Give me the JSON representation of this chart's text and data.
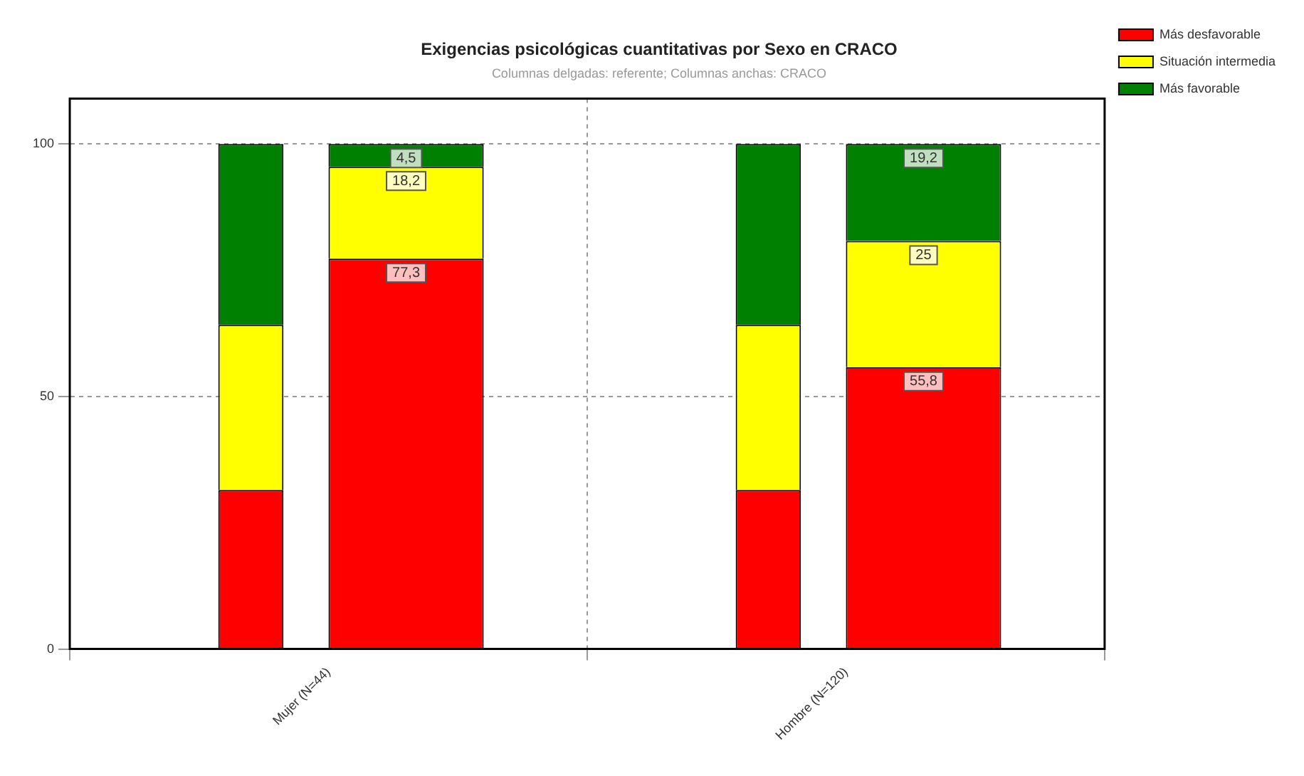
{
  "chart_data": {
    "type": "bar",
    "title": "Exigencias psicológicas cuantitativas por Sexo en CRACO",
    "subtitle": "Columnas delgadas: referente; Columnas anchas: CRACO",
    "categories": [
      "Mujer (N=44)",
      "Hombre (N=120)"
    ],
    "series": [
      {
        "color": "#ff0000",
        "values": [
          31.5,
          31.5
        ],
        "base": [
          0,
          0
        ]
      },
      {
        "color": "#ffff00",
        "values": [
          32.7,
          32.7
        ],
        "base": [
          31.5,
          31.5
        ]
      },
      {
        "color": "#008000",
        "values": [
          35.8,
          35.8
        ],
        "base": [
          64.2,
          64.2
        ]
      },
      {
        "name": "Más desfavorable",
        "color": "#ff0000",
        "values": [
          77.3,
          55.8
        ],
        "base": [
          0,
          0
        ],
        "value_labels": [
          "77,3",
          "55,8"
        ]
      },
      {
        "name": "Situación intermedia",
        "color": "#ffff00",
        "values": [
          18.2,
          25
        ],
        "base": [
          77.3,
          55.8
        ],
        "value_labels": [
          "18,2",
          "25"
        ]
      },
      {
        "name": "Más favorable",
        "color": "#008000",
        "values": [
          4.5,
          19.2
        ],
        "base": [
          95.5,
          80.8
        ],
        "value_labels": [
          "4,5",
          "19,2"
        ]
      }
    ],
    "ylim": [
      0,
      109
    ],
    "yticks": [
      0,
      50,
      100
    ],
    "grid": true,
    "legend": "top right"
  }
}
